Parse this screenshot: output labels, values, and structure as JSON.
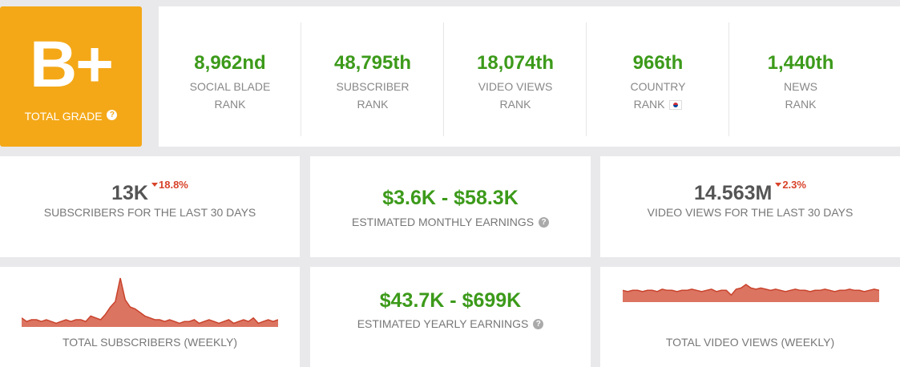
{
  "grade": {
    "value": "B+",
    "label": "TOTAL GRADE",
    "help_glyph": "?"
  },
  "ranks": [
    {
      "value": "8,962nd",
      "line1": "SOCIAL BLADE",
      "line2": "RANK"
    },
    {
      "value": "48,795th",
      "line1": "SUBSCRIBER",
      "line2": "RANK"
    },
    {
      "value": "18,074th",
      "line1": "VIDEO VIEWS",
      "line2": "RANK"
    },
    {
      "value": "966th",
      "line1": "COUNTRY",
      "line2": "RANK",
      "flag": "south-korea-flag-icon"
    },
    {
      "value": "1,440th",
      "line1": "NEWS",
      "line2": "RANK"
    }
  ],
  "stats": {
    "subs30": {
      "value": "13K",
      "delta": "18.8%",
      "delta_direction": "down",
      "label": "SUBSCRIBERS FOR THE LAST 30 DAYS"
    },
    "monthly": {
      "value": "$3.6K - $58.3K",
      "label": "ESTIMATED MONTHLY EARNINGS",
      "help_glyph": "?"
    },
    "views30": {
      "value": "14.563M",
      "delta": "2.3%",
      "delta_direction": "down",
      "label": "VIDEO VIEWS FOR THE LAST 30 DAYS"
    },
    "yearly": {
      "value": "$43.7K - $699K",
      "label": "ESTIMATED YEARLY EARNINGS",
      "help_glyph": "?"
    }
  },
  "sparklines": {
    "subs_label": "TOTAL SUBSCRIBERS (WEEKLY)",
    "views_label": "TOTAL VIDEO VIEWS (WEEKLY)",
    "subs_values": [
      5,
      3,
      4,
      4,
      3,
      4,
      3,
      2,
      3,
      4,
      3,
      4,
      4,
      3,
      6,
      5,
      4,
      7,
      11,
      14,
      27,
      15,
      11,
      10,
      8,
      6,
      5,
      4,
      4,
      3,
      4,
      3,
      2,
      3,
      3,
      4,
      2,
      3,
      4,
      3,
      2,
      3,
      4,
      2,
      3,
      4,
      3,
      5,
      2,
      3,
      4,
      3,
      4
    ],
    "views_values": [
      10,
      9,
      10,
      10,
      9,
      10,
      10,
      9,
      11,
      10,
      10,
      9,
      10,
      10,
      11,
      10,
      9,
      10,
      11,
      9,
      10,
      10,
      6,
      11,
      12,
      15,
      12,
      11,
      12,
      11,
      10,
      11,
      10,
      9,
      10,
      11,
      10,
      10,
      9,
      10,
      10,
      11,
      10,
      9,
      10,
      10,
      11,
      10,
      10,
      9,
      10,
      11,
      10
    ],
    "fill_color": "#db7461",
    "line_color": "#c9432c"
  },
  "colors": {
    "grade_bg": "#f4a817",
    "green": "#3c9a1a",
    "red": "#d8432a",
    "background": "#e9e9eb"
  }
}
